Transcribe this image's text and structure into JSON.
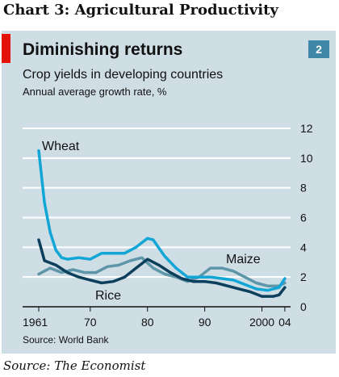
{
  "header": {
    "title": "Chart 3: Agricultural Productivity"
  },
  "chart_meta": {
    "badge": "2",
    "source": "Source: World Bank"
  },
  "footer": {
    "credit": "Source: The Economist"
  },
  "colors": {
    "panel": "#cfdde5",
    "accent_red": "#e3120b",
    "badge": "#3f87a6",
    "wheat": "#12a6d6",
    "rice": "#0b3f5c",
    "maize": "#5d96a8",
    "grid": "#ffffff"
  },
  "chart_data": {
    "type": "line",
    "title": "Diminishing returns",
    "subtitle": "Crop yields in developing countries",
    "units": "Annual average growth rate, %",
    "xlim": [
      1961,
      2005
    ],
    "ylim": [
      0,
      12
    ],
    "yticks": [
      0,
      2,
      4,
      6,
      8,
      10,
      12
    ],
    "ytick_side": "right",
    "xtick_labels": [
      {
        "value": 1961,
        "label": "1961"
      },
      {
        "value": 1970,
        "label": "70"
      },
      {
        "value": 1980,
        "label": "80"
      },
      {
        "value": 1990,
        "label": "90"
      },
      {
        "value": 2000,
        "label": "2000"
      },
      {
        "value": 2004,
        "label": "04"
      }
    ],
    "grid": true,
    "series": [
      {
        "name": "Maize",
        "color_key": "maize",
        "x": [
          1961,
          1963,
          1965,
          1967,
          1969,
          1971,
          1973,
          1975,
          1977,
          1979,
          1981,
          1983,
          1985,
          1987,
          1989,
          1991,
          1993,
          1995,
          1997,
          1999,
          2001,
          2003,
          2004
        ],
        "y": [
          2.2,
          2.6,
          2.3,
          2.5,
          2.3,
          2.3,
          2.7,
          2.8,
          3.1,
          3.3,
          2.6,
          2.2,
          2.0,
          1.7,
          2.0,
          2.6,
          2.6,
          2.4,
          2.0,
          1.6,
          1.4,
          1.4,
          1.6
        ]
      },
      {
        "name": "Rice",
        "color_key": "rice",
        "x": [
          1961,
          1962,
          1964,
          1966,
          1968,
          1970,
          1972,
          1974,
          1976,
          1978,
          1980,
          1982,
          1984,
          1986,
          1988,
          1990,
          1992,
          1994,
          1996,
          1998,
          2000,
          2002,
          2003,
          2004
        ],
        "y": [
          4.5,
          3.1,
          2.8,
          2.3,
          2.0,
          1.8,
          1.6,
          1.7,
          2.0,
          2.6,
          3.2,
          2.8,
          2.3,
          1.9,
          1.7,
          1.7,
          1.6,
          1.4,
          1.2,
          1.0,
          0.7,
          0.7,
          0.8,
          1.3
        ]
      },
      {
        "name": "Wheat",
        "color_key": "wheat",
        "x": [
          1961,
          1962,
          1963,
          1964,
          1965,
          1966,
          1968,
          1970,
          1972,
          1974,
          1976,
          1978,
          1980,
          1981,
          1983,
          1985,
          1987,
          1989,
          1991,
          1993,
          1995,
          1997,
          1999,
          2001,
          2003,
          2004
        ],
        "y": [
          10.5,
          7.0,
          5.0,
          3.8,
          3.3,
          3.2,
          3.3,
          3.2,
          3.6,
          3.6,
          3.6,
          4.0,
          4.6,
          4.5,
          3.4,
          2.6,
          2.0,
          2.0,
          2.0,
          1.9,
          1.8,
          1.5,
          1.2,
          1.1,
          1.3,
          1.9
        ]
      }
    ],
    "annotations": [
      {
        "text": "Wheat",
        "series": "Wheat"
      },
      {
        "text": "Rice",
        "series": "Rice"
      },
      {
        "text": "Maize",
        "series": "Maize"
      }
    ]
  }
}
